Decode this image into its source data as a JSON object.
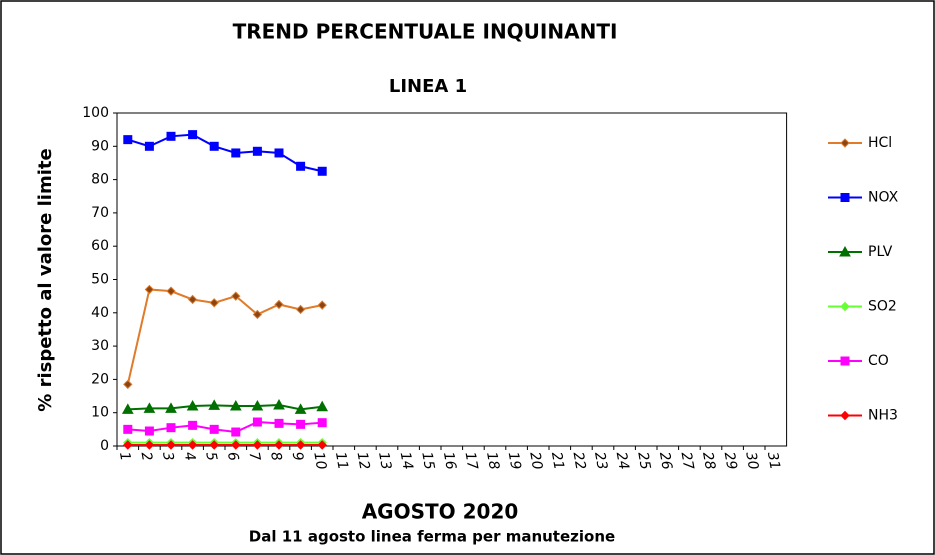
{
  "chart_data": {
    "type": "line",
    "title": "TREND PERCENTUALE  INQUINANTI",
    "subtitle": "LINEA 1",
    "ylabel": "% rispetto al valore limite",
    "xlabel": "AGOSTO 2020",
    "note": "Dal 11 agosto linea ferma per manutezione",
    "categories": [
      "1",
      "2",
      "3",
      "4",
      "5",
      "6",
      "7",
      "8",
      "9",
      "10",
      "11",
      "12",
      "13",
      "14",
      "15",
      "16",
      "17",
      "18",
      "19",
      "20",
      "21",
      "22",
      "23",
      "24",
      "25",
      "26",
      "27",
      "28",
      "29",
      "30",
      "31"
    ],
    "ylim": [
      0,
      100
    ],
    "yticks": [
      0,
      10,
      20,
      30,
      40,
      50,
      60,
      70,
      80,
      90,
      100
    ],
    "grid": false,
    "legend": "right",
    "series": [
      {
        "name": "HCl",
        "color": "#e07b2a",
        "marker": "diamond",
        "marker_color": "#8b4513",
        "values": [
          18.5,
          47,
          46.5,
          44,
          43,
          45,
          39.5,
          42.5,
          41,
          42.3,
          null,
          null,
          null,
          null,
          null,
          null,
          null,
          null,
          null,
          null,
          null,
          null,
          null,
          null,
          null,
          null,
          null,
          null,
          null,
          null,
          null
        ]
      },
      {
        "name": "NOX",
        "color": "#0000ff",
        "marker": "square",
        "marker_color": "#0000ff",
        "values": [
          92,
          90,
          93,
          93.5,
          90,
          88,
          88.5,
          88,
          84,
          82.5,
          null,
          null,
          null,
          null,
          null,
          null,
          null,
          null,
          null,
          null,
          null,
          null,
          null,
          null,
          null,
          null,
          null,
          null,
          null,
          null,
          null
        ]
      },
      {
        "name": "PLV",
        "color": "#007000",
        "marker": "triangle",
        "marker_color": "#007000",
        "values": [
          11,
          11.3,
          11.3,
          12,
          12.2,
          12,
          12,
          12.3,
          11,
          11.8,
          null,
          null,
          null,
          null,
          null,
          null,
          null,
          null,
          null,
          null,
          null,
          null,
          null,
          null,
          null,
          null,
          null,
          null,
          null,
          null,
          null
        ]
      },
      {
        "name": "SO2",
        "color": "#66ff33",
        "marker": "diamond",
        "marker_color": "#66ff33",
        "values": [
          1,
          1,
          1,
          1,
          1,
          1,
          1,
          1,
          1,
          1,
          null,
          null,
          null,
          null,
          null,
          null,
          null,
          null,
          null,
          null,
          null,
          null,
          null,
          null,
          null,
          null,
          null,
          null,
          null,
          null,
          null
        ]
      },
      {
        "name": "CO",
        "color": "#ff00ff",
        "marker": "square",
        "marker_color": "#ff00ff",
        "values": [
          5,
          4.5,
          5.5,
          6.2,
          5,
          4.2,
          7.2,
          6.8,
          6.5,
          7,
          null,
          null,
          null,
          null,
          null,
          null,
          null,
          null,
          null,
          null,
          null,
          null,
          null,
          null,
          null,
          null,
          null,
          null,
          null,
          null,
          null
        ]
      },
      {
        "name": "NH3",
        "color": "#ff0000",
        "marker": "diamond",
        "marker_color": "#ff0000",
        "values": [
          0.3,
          0.3,
          0.3,
          0.3,
          0.3,
          0.3,
          0.3,
          0.3,
          0.3,
          0.3,
          null,
          null,
          null,
          null,
          null,
          null,
          null,
          null,
          null,
          null,
          null,
          null,
          null,
          null,
          null,
          null,
          null,
          null,
          null,
          null,
          null
        ]
      }
    ]
  }
}
